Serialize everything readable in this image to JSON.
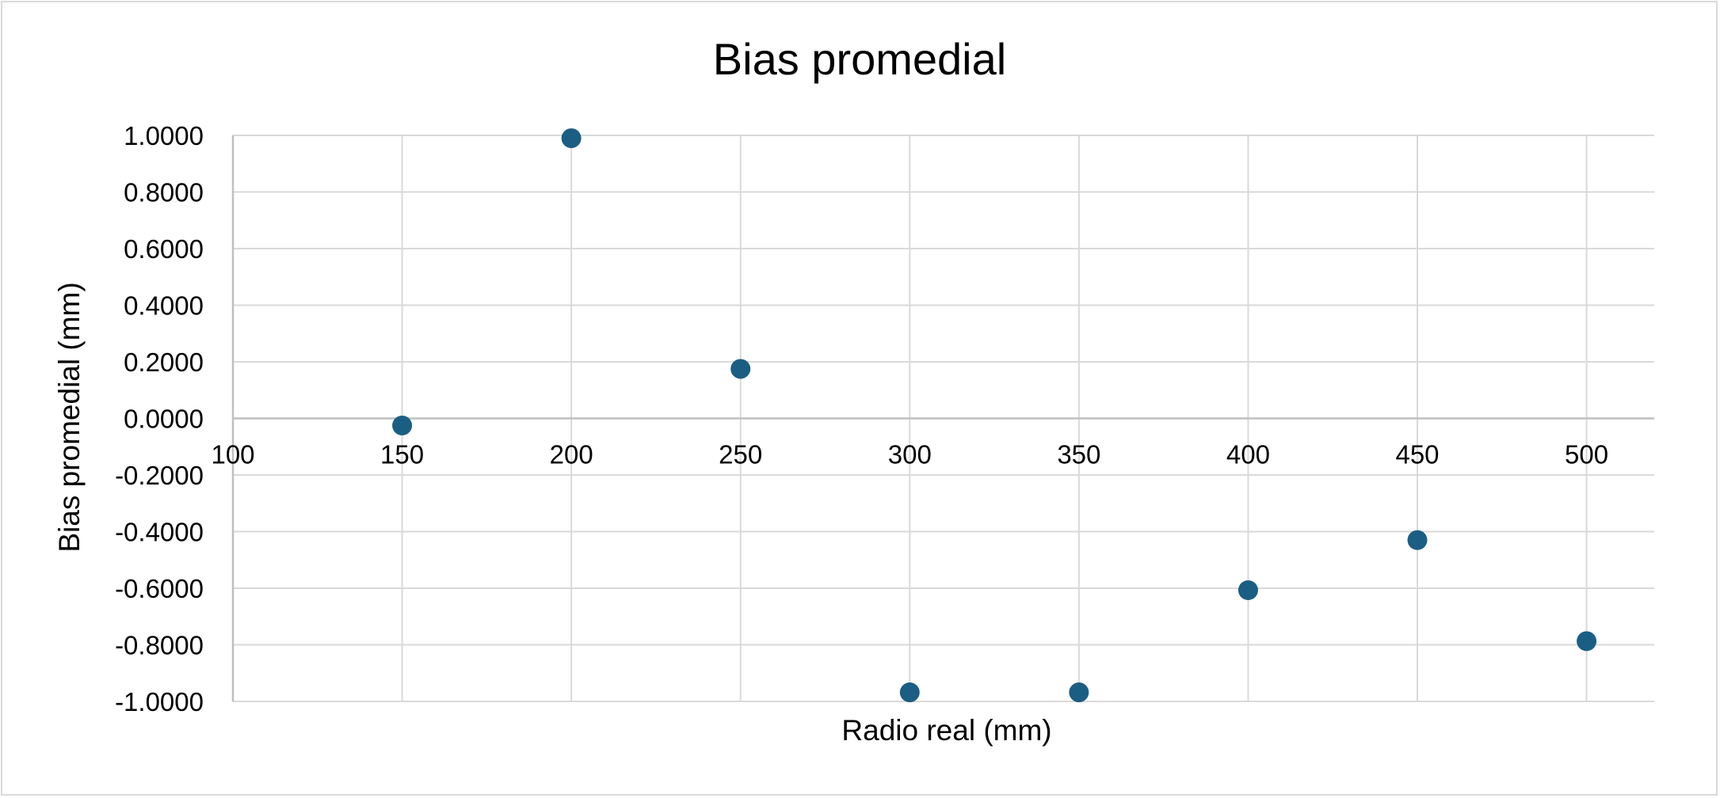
{
  "chart_data": {
    "type": "scatter",
    "title": "Bias promedial",
    "xlabel": "Radio real (mm)",
    "ylabel": "Bias promedial (mm)",
    "xlim": [
      100,
      520
    ],
    "ylim": [
      -1.0,
      1.0
    ],
    "x_ticks": [
      "100",
      "150",
      "200",
      "250",
      "300",
      "350",
      "400",
      "450",
      "500"
    ],
    "x_tick_values": [
      100,
      150,
      200,
      250,
      300,
      350,
      400,
      450,
      500
    ],
    "y_ticks": [
      "1.0000",
      "0.8000",
      "0.6000",
      "0.4000",
      "0.2000",
      "0.0000",
      "-0.2000",
      "-0.4000",
      "-0.6000",
      "-0.8000",
      "-1.0000"
    ],
    "y_tick_values": [
      1.0,
      0.8,
      0.6,
      0.4,
      0.2,
      0.0,
      -0.2,
      -0.4,
      -0.6,
      -0.8,
      -1.0
    ],
    "grid": true,
    "legend": "none",
    "marker_color": "#1b5e84",
    "series": [
      {
        "x": [
          150,
          200,
          250,
          300,
          350,
          400,
          450,
          500
        ],
        "y": [
          -0.025,
          0.99,
          0.175,
          -0.968,
          -0.968,
          -0.607,
          -0.43,
          -0.787
        ]
      }
    ]
  }
}
